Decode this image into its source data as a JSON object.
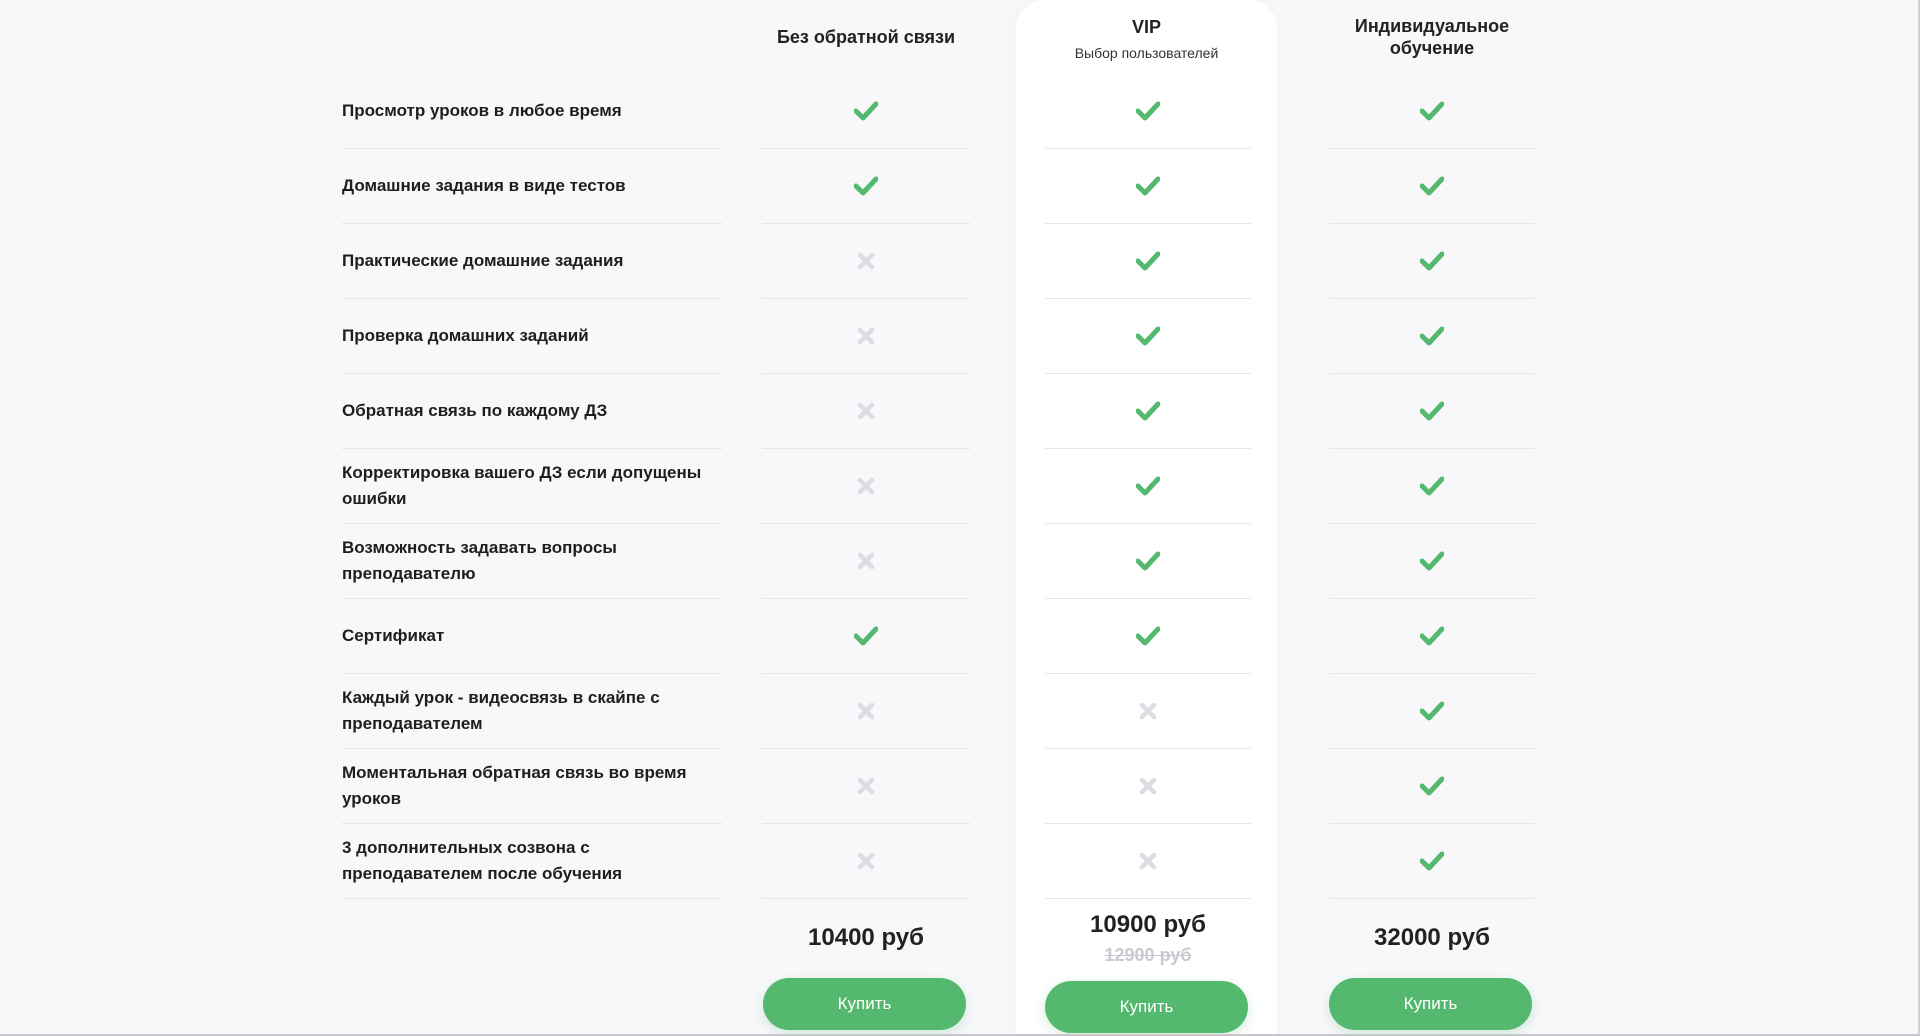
{
  "plans": [
    {
      "title": "Без обратной связи",
      "subtitle": "",
      "price": "10400 руб",
      "old_price": "",
      "buy_label": "Купить"
    },
    {
      "title": "VIP",
      "subtitle": "Выбор пользователей",
      "price": "10900 руб",
      "old_price": "12900 руб",
      "buy_label": "Купить"
    },
    {
      "title": "Индивидуальное обучение",
      "subtitle": "",
      "price": "32000 руб",
      "old_price": "",
      "buy_label": "Купить"
    }
  ],
  "features": [
    {
      "label": "Просмотр уроков в любое время",
      "included": [
        true,
        true,
        true
      ]
    },
    {
      "label": "Домашние задания в виде тестов",
      "included": [
        true,
        true,
        true
      ]
    },
    {
      "label": "Практические домашние задания",
      "included": [
        false,
        true,
        true
      ]
    },
    {
      "label": "Проверка домашних заданий",
      "included": [
        false,
        true,
        true
      ]
    },
    {
      "label": "Обратная связь по каждому ДЗ",
      "included": [
        false,
        true,
        true
      ]
    },
    {
      "label": "Корректировка вашего ДЗ если допущены ошибки",
      "included": [
        false,
        true,
        true
      ]
    },
    {
      "label": "Возможность задавать вопросы преподавателю",
      "included": [
        false,
        true,
        true
      ]
    },
    {
      "label": "Сертификат",
      "included": [
        true,
        true,
        true
      ]
    },
    {
      "label": "Каждый урок - видеосвязь в скайпе с преподавателем",
      "included": [
        false,
        false,
        true
      ]
    },
    {
      "label": "Моментальная обратная связь во время уроков",
      "included": [
        false,
        false,
        true
      ]
    },
    {
      "label": "3 дополнительных созвона с преподавателем после обучения",
      "included": [
        false,
        false,
        true
      ]
    }
  ],
  "colors": {
    "check": "#54b86f",
    "cross": "#dcdce2",
    "button": "#54b86f"
  },
  "icons": {
    "included": "check-icon",
    "excluded": "cross-icon"
  }
}
